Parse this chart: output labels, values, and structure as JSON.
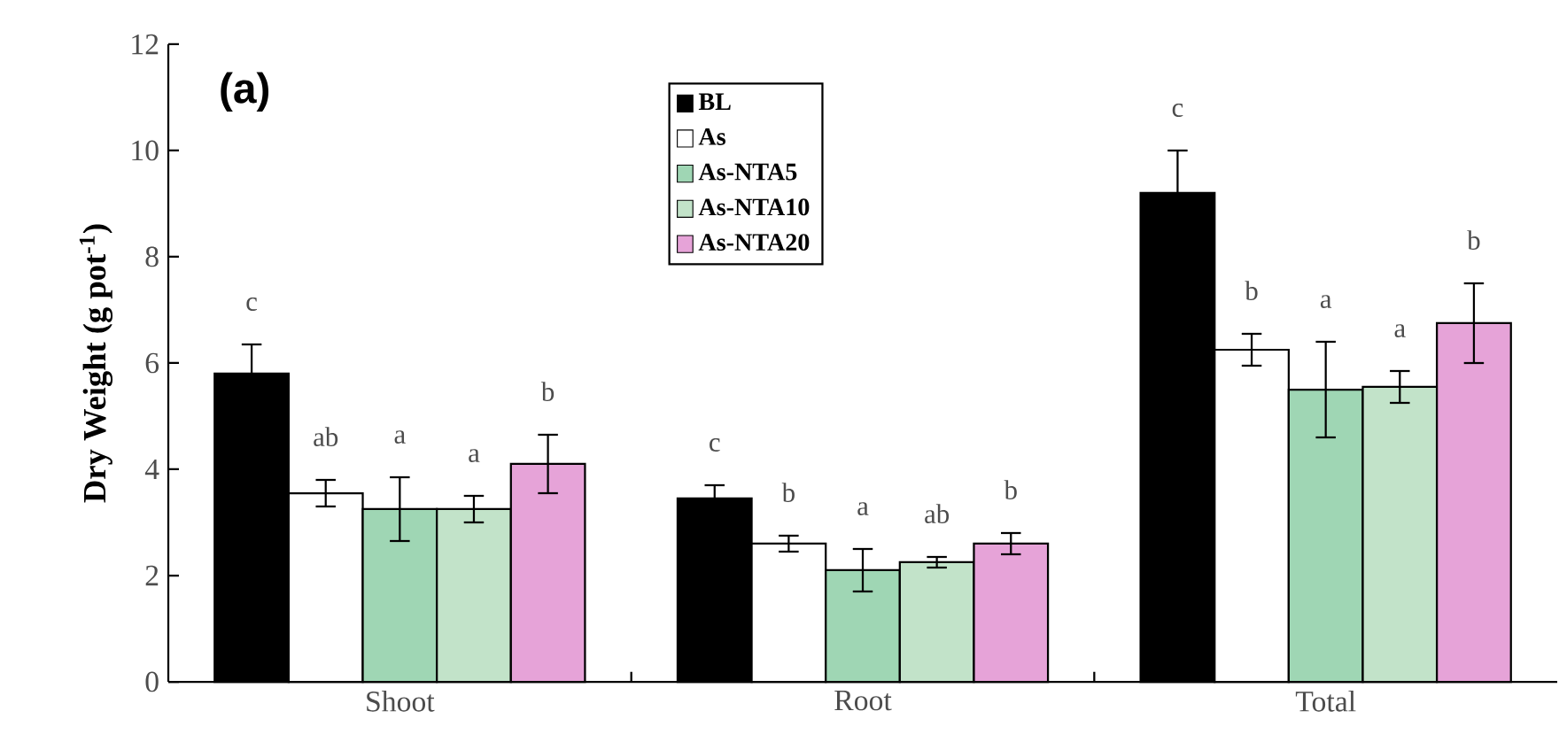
{
  "chart_data": {
    "type": "bar",
    "title": "(a)",
    "ylabel": "Dry Weight (g pot$^{-1}$)",
    "categories": [
      "Shoot",
      "Root",
      "Total"
    ],
    "series": [
      {
        "name": "BL",
        "color": "#000000",
        "values": [
          5.8,
          3.45,
          9.2
        ],
        "errors": [
          0.55,
          0.25,
          0.8
        ]
      },
      {
        "name": "As",
        "color": "#ffffff",
        "values": [
          3.55,
          2.6,
          6.25
        ],
        "errors": [
          0.25,
          0.15,
          0.3
        ]
      },
      {
        "name": "As-NTA5",
        "color": "#9fd6b4",
        "values": [
          3.25,
          2.1,
          5.5
        ],
        "errors": [
          0.6,
          0.4,
          0.9
        ]
      },
      {
        "name": "As-NTA10",
        "color": "#c2e3c9",
        "values": [
          3.25,
          2.25,
          5.55
        ],
        "errors": [
          0.25,
          0.1,
          0.3
        ]
      },
      {
        "name": "As-NTA20",
        "color": "#e6a3d8",
        "values": [
          4.1,
          2.6,
          6.75
        ],
        "errors": [
          0.55,
          0.2,
          0.75
        ]
      }
    ],
    "ylim": [
      0,
      12
    ],
    "yticks": [
      0,
      2,
      4,
      6,
      8,
      10,
      12
    ],
    "legend": "top",
    "grid": false,
    "annotations": [
      "c",
      "ab",
      "a",
      "a",
      "b",
      "c",
      "b",
      "a",
      "ab",
      "b",
      "c",
      "b",
      "a",
      "a",
      "b"
    ]
  }
}
